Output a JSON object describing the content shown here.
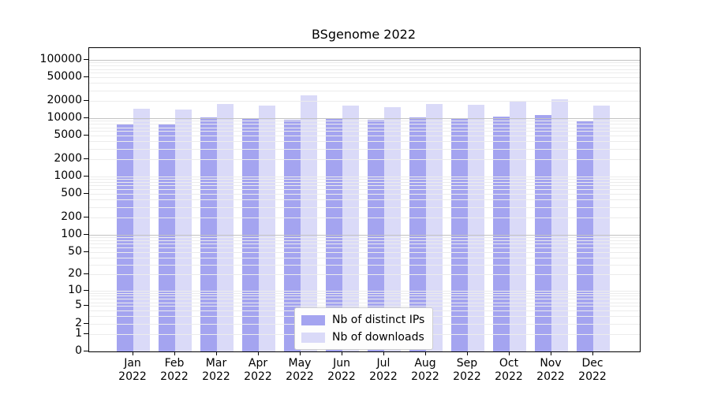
{
  "window": {
    "title": "BSgenome 2022"
  },
  "chart_data": {
    "type": "bar",
    "title": "BSgenome 2022",
    "categories": [
      "Jan",
      "Feb",
      "Mar",
      "Apr",
      "May",
      "Jun",
      "Jul",
      "Aug",
      "Sep",
      "Oct",
      "Nov",
      "Dec"
    ],
    "year": "2022",
    "series": [
      {
        "name": "Nb of distinct IPs",
        "color": "#a4a4f0",
        "values": [
          7900,
          7700,
          10300,
          9700,
          9500,
          9900,
          9500,
          10300,
          9900,
          10700,
          11400,
          8800
        ]
      },
      {
        "name": "Nb of downloads",
        "color": "#dadaf8",
        "values": [
          14400,
          14100,
          17800,
          16600,
          25000,
          16600,
          15500,
          17700,
          17100,
          19600,
          21100,
          16500
        ]
      }
    ],
    "yscale": "log1p",
    "y_ticks": [
      0,
      1,
      2,
      5,
      10,
      20,
      50,
      100,
      200,
      500,
      1000,
      2000,
      5000,
      10000,
      20000,
      50000,
      100000
    ],
    "ylim": [
      0,
      165000
    ],
    "xlabel": "",
    "ylabel": "",
    "grid": {
      "orientation": "horizontal",
      "minor_color": "#ececec",
      "major_color": "#c2c2c2",
      "major_values": [
        100,
        10000,
        100000
      ]
    },
    "legend": {
      "position": "inside-bottom-center",
      "items": [
        {
          "label": "Nb of distinct IPs",
          "color": "#a4a4f0"
        },
        {
          "label": "Nb of downloads",
          "color": "#dadaf8"
        }
      ]
    }
  },
  "colors": {
    "background": "#ffffff",
    "axis": "#000000",
    "text": "#000000"
  }
}
